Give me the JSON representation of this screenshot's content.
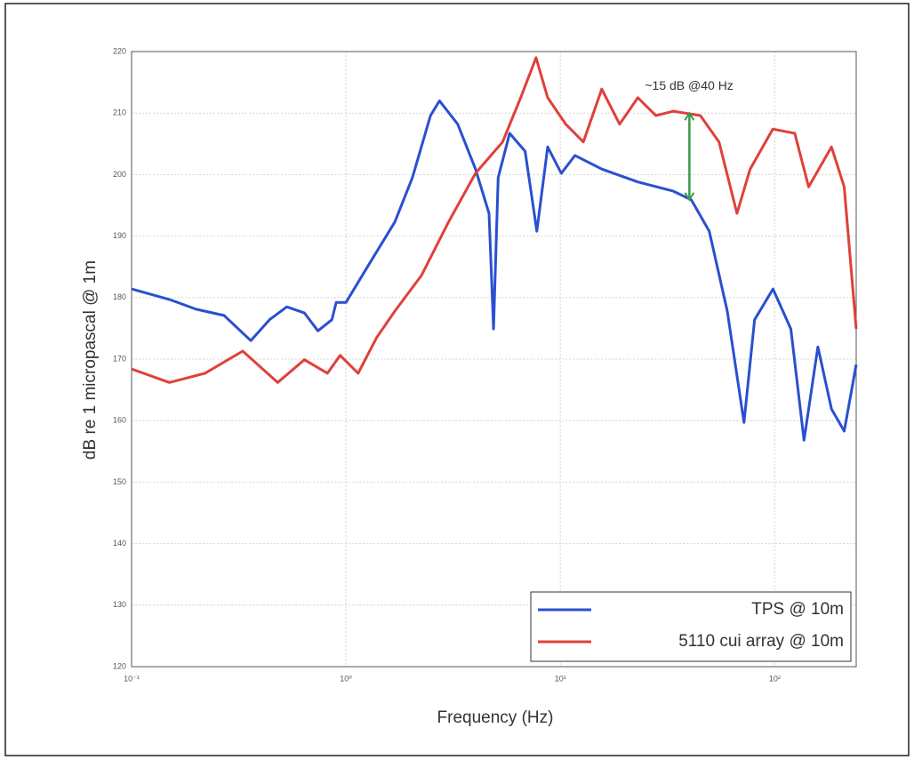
{
  "chart_data": {
    "type": "line",
    "xlabel": "Frequency (Hz)",
    "ylabel": "dB re 1 micropascal @ 1m",
    "log_x": true,
    "grid": true,
    "legend": "lower right",
    "xlim": [
      0.1,
      240
    ],
    "ylim": [
      120,
      220
    ],
    "xticks": [
      {
        "value": 0.1,
        "label": "10⁻¹"
      },
      {
        "value": 1,
        "label": "10⁰"
      },
      {
        "value": 10,
        "label": "10¹"
      },
      {
        "value": 100,
        "label": "10²"
      }
    ],
    "yticks": [
      120,
      130,
      140,
      150,
      160,
      170,
      180,
      190,
      200,
      210,
      220
    ],
    "annotation": {
      "text": "~15 dB @40 Hz",
      "x": 40,
      "y": [
        195.9,
        210
      ],
      "color": "#3a9a4a"
    },
    "series": [
      {
        "name": "TPS @ 10m",
        "color": "#2a4fd0",
        "x": [
          0.1,
          0.15,
          0.2,
          0.27,
          0.36,
          0.44,
          0.53,
          0.64,
          0.74,
          0.86,
          0.9,
          1.0,
          1.26,
          1.69,
          2.04,
          2.48,
          2.73,
          3.32,
          4.02,
          4.65,
          4.88,
          5.13,
          5.8,
          6.85,
          7.77,
          8.73,
          10.1,
          11.7,
          15.6,
          23,
          33.7,
          40.8,
          49.5,
          60.1,
          71.9,
          80.6,
          98.2,
          119,
          137,
          159,
          184,
          211,
          240
        ],
        "values": [
          181.4,
          179.7,
          178.1,
          177.1,
          173,
          176.4,
          178.5,
          177.5,
          174.6,
          176.4,
          179.2,
          179.2,
          185,
          192.3,
          199.5,
          209.6,
          212,
          208.2,
          200.9,
          193.7,
          174.9,
          199.5,
          206.7,
          203.8,
          190.8,
          204.5,
          200.2,
          203.1,
          200.9,
          198.8,
          197.3,
          195.9,
          190.8,
          177.8,
          159.7,
          176.4,
          181.4,
          174.9,
          156.8,
          172,
          161.9,
          158.3,
          169.1
        ]
      },
      {
        "name": "5110 cui array @ 10m",
        "color": "#e0403a",
        "x": [
          0.1,
          0.15,
          0.22,
          0.33,
          0.48,
          0.64,
          0.82,
          0.94,
          1.14,
          1.39,
          1.69,
          2.25,
          3.01,
          4.02,
          5.38,
          6.53,
          7.7,
          8.73,
          10.6,
          12.8,
          15.6,
          18.9,
          23,
          27.9,
          33.7,
          45,
          55,
          66.7,
          76.8,
          98,
          124,
          144,
          184,
          211,
          240
        ],
        "values": [
          168.4,
          166.2,
          167.7,
          171.3,
          166.2,
          169.9,
          167.7,
          170.6,
          167.7,
          173.5,
          177.8,
          183.6,
          192.3,
          200.2,
          205.3,
          212.5,
          219,
          212.5,
          208.2,
          205.3,
          213.9,
          208.2,
          212.5,
          209.6,
          210.3,
          209.6,
          205.3,
          193.7,
          200.9,
          207.4,
          206.7,
          198,
          204.5,
          198,
          174.9
        ]
      }
    ]
  }
}
